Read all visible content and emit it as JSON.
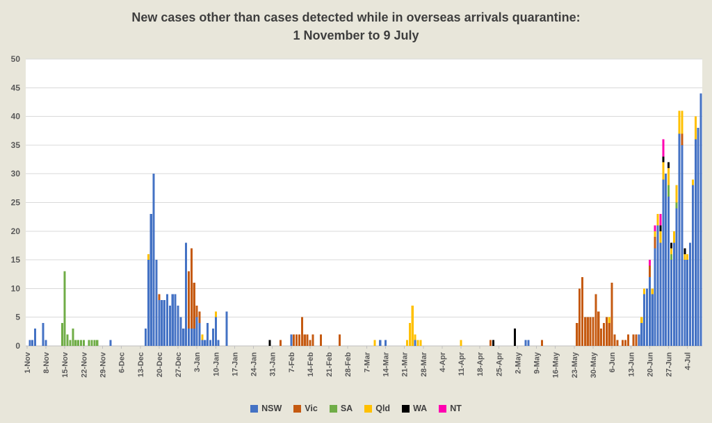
{
  "title": {
    "line1": "New cases other than cases detected while in overseas arrivals quarantine:",
    "line2": "1 November to 9 July"
  },
  "colors": {
    "background": "#e8e6da",
    "plot_background": "#ffffff",
    "gridline": "#d9d9d9",
    "axis_line": "#bfbfbf",
    "axis_text": "#595959",
    "title_text": "#3e3e3e"
  },
  "chart_data": {
    "type": "bar",
    "stacked": true,
    "title": "New cases other than cases detected while in overseas arrivals quarantine: 1 November to 9 July",
    "xlabel": "",
    "ylabel": "",
    "ylim": [
      0,
      50
    ],
    "y_ticks": [
      0,
      5,
      10,
      15,
      20,
      25,
      30,
      35,
      40,
      45,
      50
    ],
    "grid": "horizontal",
    "legend_position": "bottom",
    "total_days": 251,
    "x_start_label": "1-Nov",
    "tick_every_days": 7,
    "x_tick_labels": [
      "1-Nov",
      "8-Nov",
      "15-Nov",
      "22-Nov",
      "29-Nov",
      "6-Dec",
      "13-Dec",
      "20-Dec",
      "27-Dec",
      "3-Jan",
      "10-Jan",
      "17-Jan",
      "24-Jan",
      "31-Jan",
      "7-Feb",
      "14-Feb",
      "21-Feb",
      "28-Feb",
      "7-Mar",
      "14-Mar",
      "21-Mar",
      "28-Mar",
      "4-Apr",
      "11-Apr",
      "18-Apr",
      "25-Apr",
      "2-May",
      "9-May",
      "16-May",
      "23-May",
      "30-May",
      "6-Jun",
      "13-Jun",
      "20-Jun",
      "27-Jun",
      "4-Jul"
    ],
    "series_order": [
      "NSW",
      "Vic",
      "SA",
      "Qld",
      "WA",
      "NT"
    ],
    "series_colors": {
      "NSW": "#4472c4",
      "Vic": "#c55a11",
      "SA": "#70ad47",
      "Qld": "#ffc000",
      "WA": "#000000",
      "NT": "#ff00b0"
    },
    "days": [
      {
        "i": 1,
        "d": "2-Nov",
        "NSW": 1
      },
      {
        "i": 2,
        "d": "3-Nov",
        "NSW": 1
      },
      {
        "i": 3,
        "d": "4-Nov",
        "NSW": 3
      },
      {
        "i": 6,
        "d": "7-Nov",
        "NSW": 4
      },
      {
        "i": 7,
        "d": "8-Nov",
        "NSW": 1
      },
      {
        "i": 13,
        "d": "14-Nov",
        "SA": 4
      },
      {
        "i": 14,
        "d": "15-Nov",
        "SA": 13
      },
      {
        "i": 15,
        "d": "16-Nov",
        "SA": 2
      },
      {
        "i": 16,
        "d": "17-Nov",
        "SA": 1
      },
      {
        "i": 17,
        "d": "18-Nov",
        "SA": 3
      },
      {
        "i": 18,
        "d": "19-Nov",
        "SA": 1
      },
      {
        "i": 19,
        "d": "20-Nov",
        "SA": 1
      },
      {
        "i": 20,
        "d": "21-Nov",
        "SA": 1
      },
      {
        "i": 21,
        "d": "22-Nov",
        "SA": 1
      },
      {
        "i": 23,
        "d": "24-Nov",
        "SA": 1
      },
      {
        "i": 24,
        "d": "25-Nov",
        "SA": 1
      },
      {
        "i": 25,
        "d": "26-Nov",
        "SA": 1
      },
      {
        "i": 26,
        "d": "27-Nov",
        "SA": 1
      },
      {
        "i": 31,
        "d": "2-Dec",
        "NSW": 1
      },
      {
        "i": 44,
        "d": "15-Dec",
        "NSW": 3
      },
      {
        "i": 45,
        "d": "16-Dec",
        "NSW": 15,
        "Qld": 1
      },
      {
        "i": 46,
        "d": "17-Dec",
        "NSW": 23
      },
      {
        "i": 47,
        "d": "18-Dec",
        "NSW": 30
      },
      {
        "i": 48,
        "d": "19-Dec",
        "NSW": 15
      },
      {
        "i": 49,
        "d": "20-Dec",
        "NSW": 8,
        "Vic": 1
      },
      {
        "i": 50,
        "d": "21-Dec",
        "NSW": 8
      },
      {
        "i": 51,
        "d": "22-Dec",
        "NSW": 8
      },
      {
        "i": 52,
        "d": "23-Dec",
        "NSW": 9
      },
      {
        "i": 53,
        "d": "24-Dec",
        "NSW": 7
      },
      {
        "i": 54,
        "d": "25-Dec",
        "NSW": 9
      },
      {
        "i": 55,
        "d": "26-Dec",
        "NSW": 9
      },
      {
        "i": 56,
        "d": "27-Dec",
        "NSW": 7
      },
      {
        "i": 57,
        "d": "28-Dec",
        "NSW": 5
      },
      {
        "i": 58,
        "d": "29-Dec",
        "NSW": 3
      },
      {
        "i": 59,
        "d": "30-Dec",
        "NSW": 18
      },
      {
        "i": 60,
        "d": "31-Dec",
        "NSW": 3,
        "Vic": 10
      },
      {
        "i": 61,
        "d": "1-Jan",
        "NSW": 3,
        "Vic": 14
      },
      {
        "i": 62,
        "d": "2-Jan",
        "NSW": 3,
        "Vic": 8
      },
      {
        "i": 63,
        "d": "3-Jan",
        "NSW": 5,
        "Vic": 2
      },
      {
        "i": 64,
        "d": "4-Jan",
        "NSW": 4,
        "Vic": 2
      },
      {
        "i": 65,
        "d": "5-Jan",
        "NSW": 1,
        "Qld": 1
      },
      {
        "i": 66,
        "d": "6-Jan",
        "NSW": 1
      },
      {
        "i": 67,
        "d": "7-Jan",
        "NSW": 4
      },
      {
        "i": 68,
        "d": "8-Jan",
        "NSW": 1
      },
      {
        "i": 69,
        "d": "9-Jan",
        "NSW": 3
      },
      {
        "i": 70,
        "d": "10-Jan",
        "NSW": 5,
        "Qld": 1
      },
      {
        "i": 71,
        "d": "11-Jan",
        "NSW": 1
      },
      {
        "i": 74,
        "d": "14-Jan",
        "NSW": 6
      },
      {
        "i": 90,
        "d": "30-Jan",
        "WA": 1
      },
      {
        "i": 94,
        "d": "3-Feb",
        "Vic": 1
      },
      {
        "i": 98,
        "d": "7-Feb",
        "NSW": 2
      },
      {
        "i": 99,
        "d": "8-Feb",
        "Vic": 2
      },
      {
        "i": 100,
        "d": "9-Feb",
        "Vic": 2
      },
      {
        "i": 101,
        "d": "10-Feb",
        "Vic": 2
      },
      {
        "i": 102,
        "d": "11-Feb",
        "Vic": 5
      },
      {
        "i": 103,
        "d": "12-Feb",
        "Vic": 2
      },
      {
        "i": 104,
        "d": "13-Feb",
        "Vic": 2
      },
      {
        "i": 105,
        "d": "14-Feb",
        "Vic": 1
      },
      {
        "i": 106,
        "d": "15-Feb",
        "Vic": 2
      },
      {
        "i": 109,
        "d": "18-Feb",
        "Vic": 2
      },
      {
        "i": 116,
        "d": "25-Feb",
        "Vic": 2
      },
      {
        "i": 129,
        "d": "10-Mar",
        "Qld": 1
      },
      {
        "i": 131,
        "d": "12-Mar",
        "NSW": 1
      },
      {
        "i": 133,
        "d": "14-Mar",
        "NSW": 1
      },
      {
        "i": 141,
        "d": "22-Mar",
        "Qld": 1
      },
      {
        "i": 142,
        "d": "23-Mar",
        "Qld": 4
      },
      {
        "i": 143,
        "d": "24-Mar",
        "Qld": 7
      },
      {
        "i": 144,
        "d": "25-Mar",
        "NSW": 1,
        "Qld": 1
      },
      {
        "i": 145,
        "d": "26-Mar",
        "Qld": 1
      },
      {
        "i": 146,
        "d": "27-Mar",
        "Qld": 1
      },
      {
        "i": 161,
        "d": "11-Apr",
        "Qld": 1
      },
      {
        "i": 172,
        "d": "22-Apr",
        "Vic": 1
      },
      {
        "i": 173,
        "d": "23-Apr",
        "WA": 1
      },
      {
        "i": 181,
        "d": "1-May",
        "WA": 3
      },
      {
        "i": 185,
        "d": "5-May",
        "NSW": 1
      },
      {
        "i": 186,
        "d": "6-May",
        "NSW": 1
      },
      {
        "i": 191,
        "d": "11-May",
        "Vic": 1
      },
      {
        "i": 204,
        "d": "24-May",
        "Vic": 4
      },
      {
        "i": 205,
        "d": "25-May",
        "Vic": 10
      },
      {
        "i": 206,
        "d": "26-May",
        "Vic": 12
      },
      {
        "i": 207,
        "d": "27-May",
        "Vic": 5
      },
      {
        "i": 208,
        "d": "28-May",
        "Vic": 5
      },
      {
        "i": 209,
        "d": "29-May",
        "Vic": 5
      },
      {
        "i": 210,
        "d": "30-May",
        "Vic": 5
      },
      {
        "i": 211,
        "d": "31-May",
        "Vic": 9
      },
      {
        "i": 212,
        "d": "1-Jun",
        "Vic": 6
      },
      {
        "i": 213,
        "d": "2-Jun",
        "Vic": 3
      },
      {
        "i": 214,
        "d": "3-Jun",
        "Vic": 4
      },
      {
        "i": 215,
        "d": "4-Jun",
        "Vic": 5
      },
      {
        "i": 216,
        "d": "5-Jun",
        "Vic": 4,
        "Qld": 1
      },
      {
        "i": 217,
        "d": "6-Jun",
        "Vic": 11
      },
      {
        "i": 218,
        "d": "7-Jun",
        "Vic": 2
      },
      {
        "i": 219,
        "d": "8-Jun",
        "Vic": 1
      },
      {
        "i": 221,
        "d": "10-Jun",
        "Vic": 1
      },
      {
        "i": 222,
        "d": "11-Jun",
        "Vic": 1
      },
      {
        "i": 223,
        "d": "12-Jun",
        "Vic": 2
      },
      {
        "i": 225,
        "d": "14-Jun",
        "Vic": 2
      },
      {
        "i": 226,
        "d": "15-Jun",
        "Vic": 2
      },
      {
        "i": 227,
        "d": "16-Jun",
        "NSW": 2
      },
      {
        "i": 228,
        "d": "17-Jun",
        "NSW": 4,
        "Qld": 1
      },
      {
        "i": 229,
        "d": "18-Jun",
        "NSW": 9,
        "Qld": 1
      },
      {
        "i": 230,
        "d": "19-Jun",
        "NSW": 10
      },
      {
        "i": 231,
        "d": "20-Jun",
        "NSW": 12,
        "Vic": 2,
        "NT": 1
      },
      {
        "i": 232,
        "d": "21-Jun",
        "NSW": 9,
        "Qld": 1
      },
      {
        "i": 233,
        "d": "22-Jun",
        "NSW": 17,
        "Vic": 2,
        "Qld": 1,
        "NT": 1
      },
      {
        "i": 234,
        "d": "23-Jun",
        "NSW": 21,
        "Qld": 2
      },
      {
        "i": 235,
        "d": "24-Jun",
        "NSW": 18,
        "Qld": 2,
        "WA": 1,
        "NT": 2
      },
      {
        "i": 236,
        "d": "25-Jun",
        "NSW": 29,
        "Qld": 3,
        "WA": 1,
        "NT": 3
      },
      {
        "i": 237,
        "d": "26-Jun",
        "NSW": 30
      },
      {
        "i": 238,
        "d": "27-Jun",
        "NSW": 26,
        "SA": 2,
        "Qld": 3,
        "WA": 1
      },
      {
        "i": 239,
        "d": "28-Jun",
        "NSW": 15,
        "SA": 1,
        "Qld": 1,
        "WA": 1
      },
      {
        "i": 240,
        "d": "29-Jun",
        "NSW": 18,
        "Qld": 2
      },
      {
        "i": 241,
        "d": "30-Jun",
        "NSW": 24,
        "SA": 1,
        "Qld": 3
      },
      {
        "i": 242,
        "d": "1-Jul",
        "NSW": 37,
        "Qld": 4
      },
      {
        "i": 243,
        "d": "2-Jul",
        "NSW": 35,
        "Vic": 2,
        "Qld": 4
      },
      {
        "i": 244,
        "d": "3-Jul",
        "NSW": 15,
        "Qld": 1,
        "WA": 1
      },
      {
        "i": 245,
        "d": "4-Jul",
        "NSW": 15,
        "Qld": 1
      },
      {
        "i": 246,
        "d": "5-Jul",
        "NSW": 18
      },
      {
        "i": 247,
        "d": "6-Jul",
        "NSW": 28,
        "Qld": 1
      },
      {
        "i": 248,
        "d": "7-Jul",
        "NSW": 36,
        "Qld": 4
      },
      {
        "i": 249,
        "d": "8-Jul",
        "NSW": 38
      },
      {
        "i": 250,
        "d": "9-Jul",
        "NSW": 44
      }
    ]
  },
  "legend": {
    "items": [
      {
        "label": "NSW",
        "color": "#4472c4"
      },
      {
        "label": "Vic",
        "color": "#c55a11"
      },
      {
        "label": "SA",
        "color": "#70ad47"
      },
      {
        "label": "Qld",
        "color": "#ffc000"
      },
      {
        "label": "WA",
        "color": "#000000"
      },
      {
        "label": "NT",
        "color": "#ff00b0"
      }
    ]
  }
}
